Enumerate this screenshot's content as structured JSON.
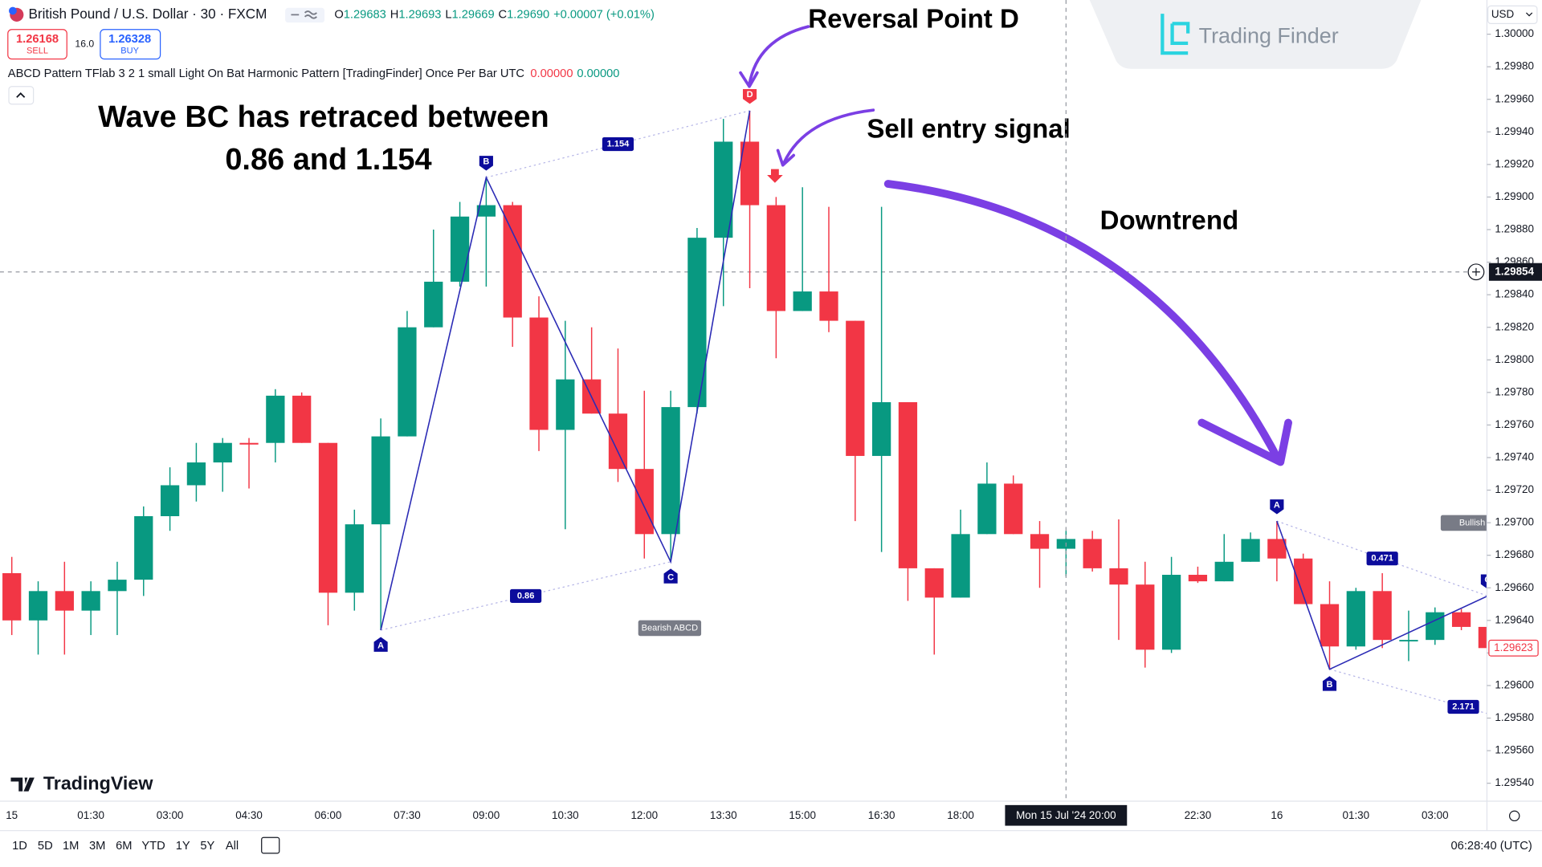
{
  "header": {
    "symbol": "British Pound / U.S. Dollar · 30 · FXCM",
    "ohlc": [
      {
        "label": "O",
        "value": "1.29683"
      },
      {
        "label": "H",
        "value": "1.29693"
      },
      {
        "label": "L",
        "value": "1.29669"
      },
      {
        "label": "C",
        "value": "1.29690"
      }
    ],
    "change": "+0.00007 (+0.01%)",
    "sell_price": "1.26168",
    "sell": "SELL",
    "spread": "16.0",
    "buy_price": "1.26328",
    "buy": "BUY",
    "indicator": "ABCD Pattern TFlab 3 2 1 small Light On Bat Harmonic Pattern [TradingFinder] Once Per Bar UTC",
    "indicator_values": [
      "0.00000",
      "0.00000"
    ]
  },
  "branding": {
    "logo": "Trading Finder",
    "platform": "TradingView"
  },
  "toolbar": {
    "ranges": [
      "1D",
      "5D",
      "1M",
      "3M",
      "6M",
      "YTD",
      "1Y",
      "5Y",
      "All"
    ],
    "clock": "06:28:40 (UTC)"
  },
  "chart_data": {
    "type": "candlestick",
    "currency": "USD",
    "categories": [
      "15",
      null,
      null,
      "01:30",
      null,
      null,
      "03:00",
      null,
      null,
      "04:30",
      null,
      null,
      "06:00",
      null,
      null,
      "07:30",
      null,
      null,
      "09:00",
      null,
      null,
      "10:30",
      null,
      null,
      "12:00",
      null,
      null,
      "13:30",
      null,
      null,
      "15:00",
      null,
      null,
      "16:30",
      null,
      null,
      "18:00",
      null,
      null,
      null,
      null,
      null,
      null,
      null,
      null,
      "22:30",
      null,
      null,
      "16",
      null,
      null,
      "01:30",
      null,
      null,
      "03:00",
      null,
      null
    ],
    "open": [
      1.29669,
      1.2964,
      1.29658,
      1.29646,
      1.29658,
      1.29665,
      1.29704,
      1.29723,
      1.29737,
      1.29749,
      1.29749,
      1.29778,
      1.29749,
      1.29657,
      1.29699,
      1.29753,
      1.2982,
      1.29848,
      1.29888,
      1.29895,
      1.29826,
      1.29757,
      1.29788,
      1.29767,
      1.29733,
      1.29693,
      1.29771,
      1.29875,
      1.29934,
      1.29895,
      1.2983,
      1.29842,
      1.29824,
      1.29741,
      1.29774,
      1.29672,
      1.29654,
      1.29693,
      1.29724,
      1.29693,
      1.29684,
      1.2969,
      1.29672,
      1.29662,
      1.29622,
      1.29668,
      1.29664,
      1.29676,
      1.2969,
      1.29678,
      1.2965,
      1.29624,
      1.29658,
      1.29628,
      1.29628,
      1.29645,
      1.29636
    ],
    "high": [
      1.29679,
      1.29664,
      1.29676,
      1.29664,
      1.29676,
      1.2971,
      1.29734,
      1.29749,
      1.29752,
      1.29752,
      1.29782,
      1.2978,
      1.29749,
      1.29708,
      1.29764,
      1.2983,
      1.2988,
      1.29897,
      1.29912,
      1.29897,
      1.29839,
      1.29824,
      1.2982,
      1.29807,
      1.29781,
      1.29781,
      1.29881,
      1.29948,
      1.29953,
      1.299,
      1.29906,
      1.29894,
      1.29824,
      1.29894,
      1.29774,
      1.29672,
      1.29708,
      1.29737,
      1.29729,
      1.29701,
      1.29695,
      1.29695,
      1.29702,
      1.29676,
      1.29679,
      1.29673,
      1.29693,
      1.29694,
      1.29701,
      1.29681,
      1.29664,
      1.2966,
      1.29669,
      1.29646,
      1.29648,
      1.29647,
      1.29655
    ],
    "low": [
      1.29631,
      1.29619,
      1.29619,
      1.29631,
      1.29631,
      1.29655,
      1.29695,
      1.29713,
      1.29719,
      1.29721,
      1.29737,
      1.29749,
      1.29637,
      1.29646,
      1.29634,
      1.29753,
      1.2982,
      1.29845,
      1.29845,
      1.29808,
      1.29744,
      1.29696,
      1.29767,
      1.29725,
      1.29678,
      1.29676,
      1.29767,
      1.29833,
      1.29844,
      1.29801,
      1.2983,
      1.29817,
      1.29701,
      1.29682,
      1.29652,
      1.29619,
      1.29654,
      1.29693,
      1.29693,
      1.2966,
      1.29667,
      1.2967,
      1.29628,
      1.29611,
      1.2962,
      1.29663,
      1.29664,
      1.29676,
      1.29664,
      1.2965,
      1.2961,
      1.29622,
      1.29623,
      1.29615,
      1.29625,
      1.29634,
      1.29622
    ],
    "close": [
      1.2964,
      1.29658,
      1.29646,
      1.29658,
      1.29665,
      1.29704,
      1.29723,
      1.29737,
      1.29749,
      1.29748,
      1.29778,
      1.29749,
      1.29657,
      1.29699,
      1.29753,
      1.2982,
      1.29848,
      1.29888,
      1.29895,
      1.29826,
      1.29757,
      1.29788,
      1.29767,
      1.29733,
      1.29693,
      1.29771,
      1.29875,
      1.29934,
      1.29895,
      1.2983,
      1.29842,
      1.29824,
      1.29741,
      1.29774,
      1.29672,
      1.29654,
      1.29693,
      1.29724,
      1.29693,
      1.29684,
      1.2969,
      1.29672,
      1.29662,
      1.29622,
      1.29668,
      1.29664,
      1.29676,
      1.2969,
      1.29678,
      1.2965,
      1.29624,
      1.29658,
      1.29628,
      1.29628,
      1.29645,
      1.29636,
      1.29623
    ],
    "up_color": "#089981",
    "down_color": "#f23645",
    "ylim": [
      1.29529,
      1.30021
    ],
    "yticks": [
      {
        "value": 1.2954,
        "label": "1.29540"
      },
      {
        "value": 1.2956,
        "label": "1.29560"
      },
      {
        "value": 1.2958,
        "label": "1.29580"
      },
      {
        "value": 1.296,
        "label": "1.29600"
      },
      {
        "value": 1.2962,
        "label": "1.29620"
      },
      {
        "value": 1.2964,
        "label": "1.29640"
      },
      {
        "value": 1.2966,
        "label": "1.29660"
      },
      {
        "value": 1.2968,
        "label": "1.29680"
      },
      {
        "value": 1.297,
        "label": "1.29700"
      },
      {
        "value": 1.2972,
        "label": "1.29720"
      },
      {
        "value": 1.2974,
        "label": "1.29740"
      },
      {
        "value": 1.2976,
        "label": "1.29760"
      },
      {
        "value": 1.2978,
        "label": "1.29780"
      },
      {
        "value": 1.298,
        "label": "1.29800"
      },
      {
        "value": 1.2982,
        "label": "1.29820"
      },
      {
        "value": 1.2984,
        "label": "1.29840"
      },
      {
        "value": 1.2986,
        "label": "1.29860"
      },
      {
        "value": 1.2988,
        "label": "1.29880"
      },
      {
        "value": 1.299,
        "label": "1.29900"
      },
      {
        "value": 1.2992,
        "label": "1.29920"
      },
      {
        "value": 1.2994,
        "label": "1.29940"
      },
      {
        "value": 1.2996,
        "label": "1.29960"
      },
      {
        "value": 1.2998,
        "label": "1.29980"
      },
      {
        "value": 1.3,
        "label": "1.30000"
      }
    ],
    "grid": false,
    "crosshair": {
      "index": 40,
      "value": 1.29854,
      "x_label": "Mon 15 Jul '24  20:00"
    },
    "last_price": 1.29623,
    "patterns": [
      {
        "name": "Bearish ABCD",
        "line_color": "#2b2bb5",
        "points": [
          {
            "label": "A",
            "index": 14,
            "value": 1.29634,
            "color": "#0c0c9c"
          },
          {
            "label": "B",
            "index": 18,
            "value": 1.29912,
            "color": "#0c0c9c"
          },
          {
            "label": "C",
            "index": 25,
            "value": 1.29676,
            "color": "#0c0c9c"
          },
          {
            "label": "D",
            "index": 28,
            "value": 1.29953,
            "color": "#f23645"
          }
        ],
        "ratios": [
          0.86,
          1.154
        ]
      },
      {
        "name": "Bullish",
        "line_color": "#2b2bb5",
        "points": [
          {
            "label": "A",
            "index": 48,
            "value": 1.29701,
            "color": "#0c0c9c"
          },
          {
            "label": "B",
            "index": 50,
            "value": 1.2961,
            "color": "#0c0c9c"
          },
          {
            "label": "C",
            "index": 56,
            "value": 1.29655,
            "color": "#0c0c9c"
          }
        ],
        "ratios": [
          0.471,
          2.171
        ]
      }
    ],
    "annotations": [
      "Wave BC has retraced between",
      "0.86 and 1.154",
      "Reversal Point D",
      "Sell entry signal",
      "Downtrend"
    ]
  }
}
